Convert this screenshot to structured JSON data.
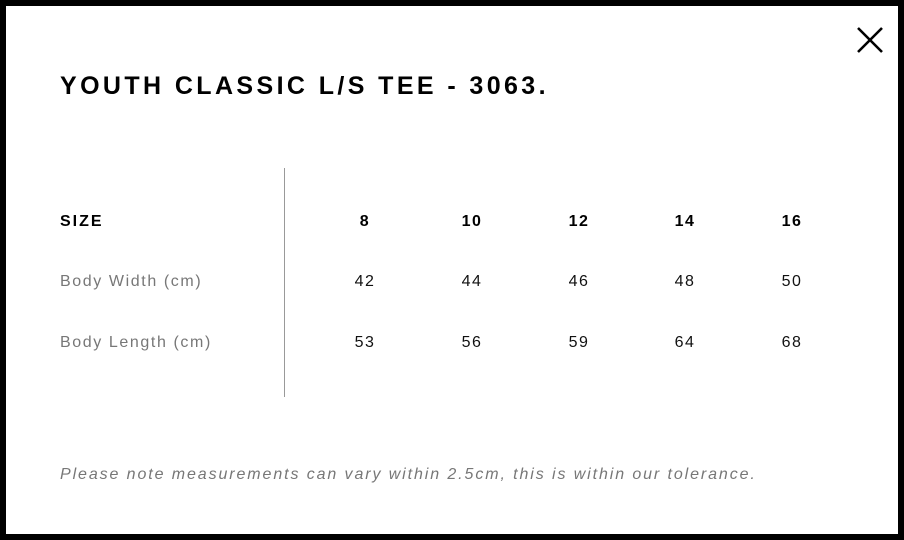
{
  "modal": {
    "title": "YOUTH CLASSIC L/S TEE - 3063.",
    "close_icon": "close-x-icon",
    "table": {
      "header_label": "SIZE",
      "sizes": [
        "8",
        "10",
        "12",
        "14",
        "16"
      ],
      "rows": [
        {
          "label": "Body Width (cm)",
          "values": [
            "42",
            "44",
            "46",
            "48",
            "50"
          ]
        },
        {
          "label": "Body Length (cm)",
          "values": [
            "53",
            "56",
            "59",
            "64",
            "68"
          ]
        }
      ]
    },
    "note": "Please note measurements can vary within 2.5cm, this is within our tolerance."
  }
}
